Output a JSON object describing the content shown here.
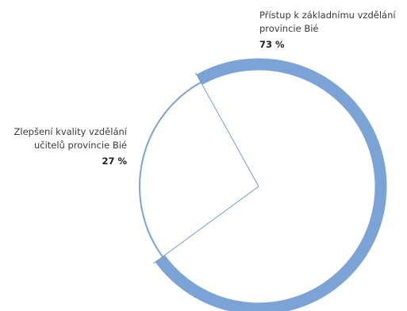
{
  "chart_data": {
    "type": "pie",
    "title": "",
    "series": [
      {
        "name": "Přístup k základnímu vzdělání provincie Bié",
        "value": 73,
        "value_label": "73 %",
        "label_lines": [
          "Přístup k základnímu vzdělání",
          "provincie Bié"
        ]
      },
      {
        "name": "Zlepšení kvality vzdělání učitelů provincie Bié",
        "value": 27,
        "value_label": "27 %",
        "label_lines": [
          "Zlepšení kvality vzdělání",
          "učitelů provincie Bié"
        ]
      }
    ],
    "colors": {
      "ring": "#7ba3d6",
      "divider": "#6b93c8",
      "text": "#3a3a3a",
      "value_text": "#222222"
    }
  }
}
